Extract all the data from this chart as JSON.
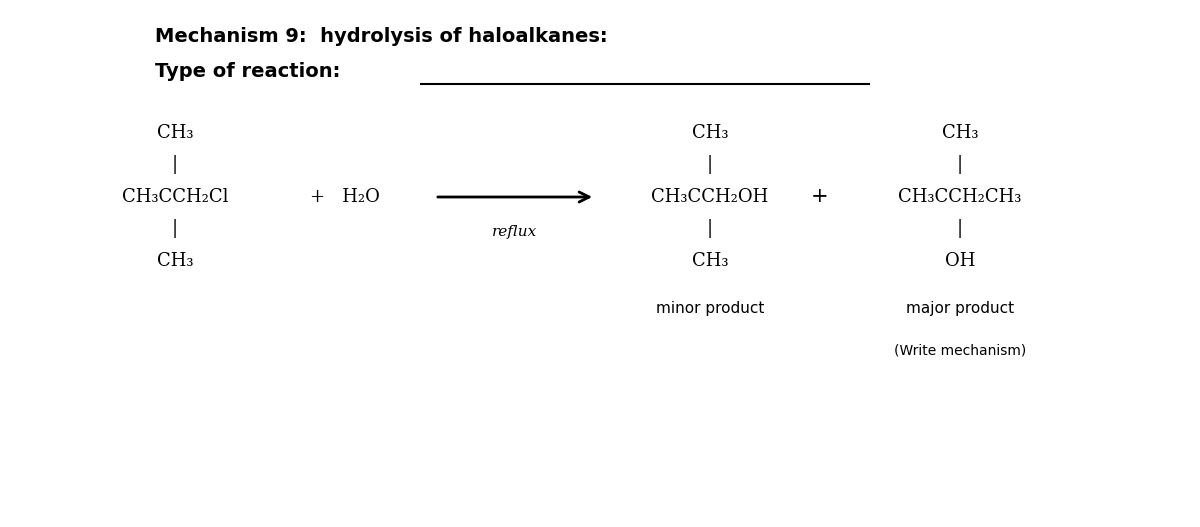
{
  "title": "Mechanism 9:  hydrolysis of haloalkanes:",
  "type_of_reaction_label": "Type of reaction:",
  "background_color": "#ffffff",
  "title_fontsize": 14,
  "chem_fontsize": 13,
  "label_fontsize": 11,
  "small_fontsize": 10,
  "reactant_main": "CH₃CCH₂Cl",
  "plus1": "+   H₂O",
  "reflux": "reflux",
  "minor_main": "CH₃CCH₂OH",
  "minor_bottom": "CH₃",
  "minor_label": "minor product",
  "major_main": "CH₃CCH₂CH₃",
  "major_bottom": "OH",
  "major_label": "major product",
  "write_mechanism": "(Write mechanism)"
}
